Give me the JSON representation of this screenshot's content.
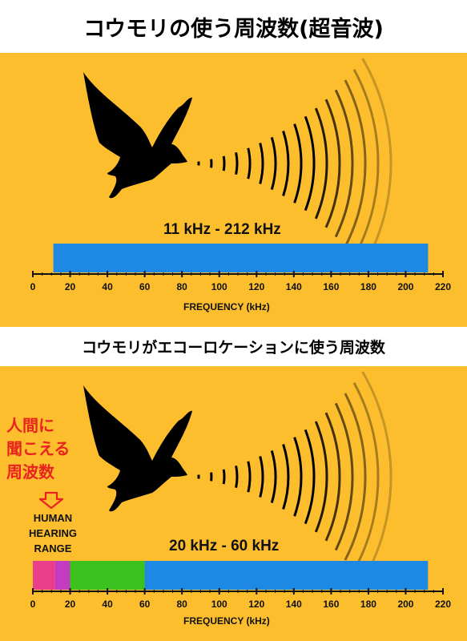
{
  "title": "コウモリの使う周波数(超音波)",
  "subtitle": "コウモリがエコーロケーションに使う周波数",
  "panel1": {
    "range_label": "11 kHz - 212 kHz",
    "axis_title": "FREQUENCY (kHz)"
  },
  "panel2": {
    "range_label": "20 kHz - 60 kHz",
    "axis_title": "FREQUENCY (kHz)",
    "annotation": [
      "人間に",
      "聞こえる",
      "周波数"
    ],
    "arrow_icon": "down-arrow-icon",
    "human_label": [
      "HUMAN",
      "HEARING",
      "RANGE"
    ]
  },
  "chart_data": [
    {
      "type": "bar",
      "orientation": "horizontal",
      "xlabel": "FREQUENCY (kHz)",
      "xlim": [
        0,
        220
      ],
      "xticks": [
        0,
        20,
        40,
        60,
        80,
        100,
        120,
        140,
        160,
        180,
        200,
        220
      ],
      "segments": [
        {
          "start": 11,
          "end": 212,
          "color": "#1E88E5"
        }
      ]
    },
    {
      "type": "bar",
      "orientation": "horizontal",
      "xlabel": "FREQUENCY (kHz)",
      "xlim": [
        0,
        220
      ],
      "xticks": [
        0,
        20,
        40,
        60,
        80,
        100,
        120,
        140,
        160,
        180,
        200,
        220
      ],
      "segments": [
        {
          "start": 0,
          "end": 12,
          "color": "#E83E8C"
        },
        {
          "start": 12,
          "end": 20,
          "color": "#C13CC0"
        },
        {
          "start": 20,
          "end": 60,
          "color": "#3CC21E"
        },
        {
          "start": 60,
          "end": 212,
          "color": "#1E88E5"
        }
      ]
    }
  ],
  "colors": {
    "background": "#FDBE2E",
    "bat": "#000000",
    "note": "#E8231F"
  }
}
